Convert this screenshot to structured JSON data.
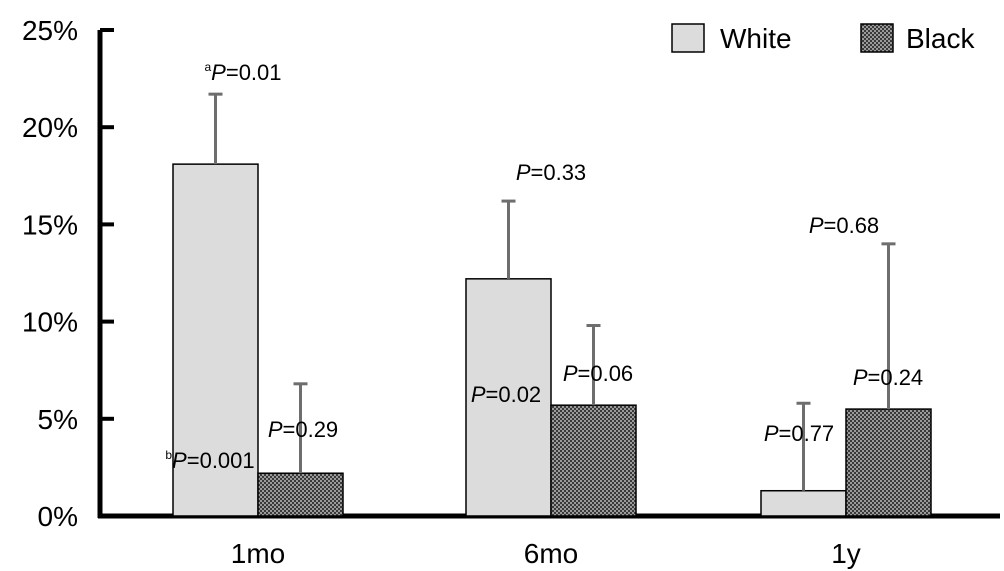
{
  "chart_data": {
    "type": "bar",
    "title": "",
    "xlabel": "",
    "ylabel": "",
    "categories": [
      "1mo",
      "6mo",
      "1y"
    ],
    "ylim": [
      0,
      25
    ],
    "yticks": [
      0,
      5,
      10,
      15,
      20,
      25
    ],
    "ytick_labels": [
      "0%",
      "5%",
      "10%",
      "15%",
      "20%",
      "25%"
    ],
    "grid": false,
    "legend_position": "top-right",
    "series": [
      {
        "name": "White",
        "color": "#dcdcdc",
        "pattern": "solid",
        "values": [
          18.1,
          12.2,
          1.3
        ],
        "error_upper": [
          21.7,
          16.2,
          5.8
        ]
      },
      {
        "name": "Black",
        "color": "#555555",
        "pattern": "checkered",
        "values": [
          2.2,
          5.7,
          5.5
        ],
        "error_upper": [
          6.8,
          9.8,
          14.0
        ]
      }
    ],
    "annotations": [
      {
        "category": 0,
        "series": 0,
        "superscript": "a",
        "italic": "P",
        "rest": "=0.01"
      },
      {
        "category": 0,
        "series": 0,
        "superscript": "b",
        "italic": "P",
        "rest": "=0.001"
      },
      {
        "category": 0,
        "series": 1,
        "superscript": "",
        "italic": "P",
        "rest": "=0.29"
      },
      {
        "category": 1,
        "series": 0,
        "superscript": "",
        "italic": "P",
        "rest": "=0.33"
      },
      {
        "category": 1,
        "series": 0,
        "superscript": "",
        "italic": "P",
        "rest": "=0.02"
      },
      {
        "category": 1,
        "series": 1,
        "superscript": "",
        "italic": "P",
        "rest": "=0.06"
      },
      {
        "category": 2,
        "series": 1,
        "superscript": "",
        "italic": "P",
        "rest": "=0.68"
      },
      {
        "category": 2,
        "series": 0,
        "superscript": "",
        "italic": "P",
        "rest": "=0.77"
      },
      {
        "category": 2,
        "series": 1,
        "superscript": "",
        "italic": "P",
        "rest": "=0.24"
      }
    ]
  }
}
